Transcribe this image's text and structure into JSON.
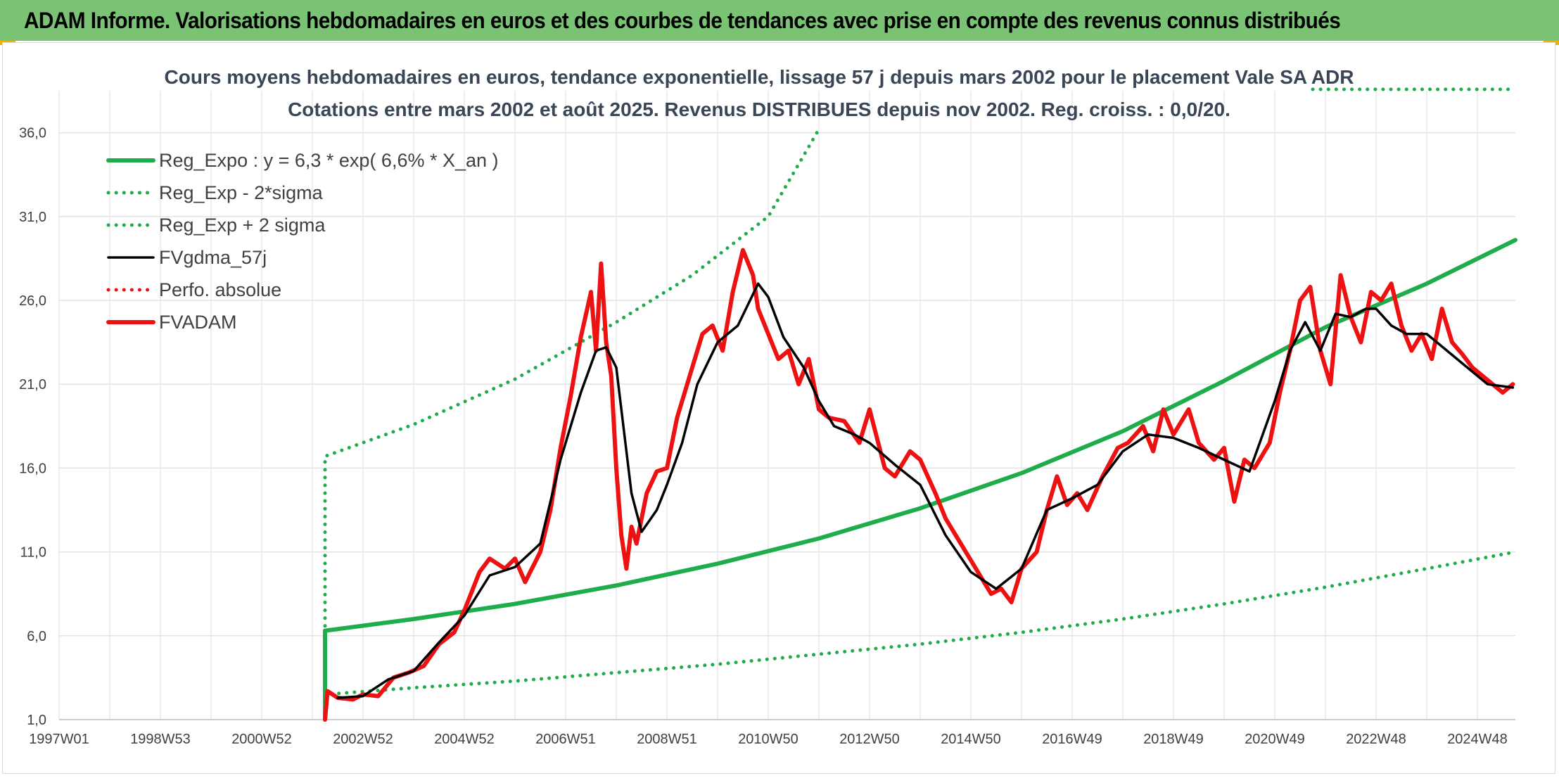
{
  "header": {
    "title": "ADAM Informe. Valorisations hebdomadaires en euros et des courbes de tendances avec prise en compte des revenus connus distribués"
  },
  "colors": {
    "header_bg": "#7ac374",
    "trend": "#1fad4b",
    "band": "#1fad4b",
    "smooth": "#000000",
    "price": "#ee1111",
    "perf": "#ee1111",
    "grid": "#e3e3e3",
    "title": "#3a4556"
  },
  "chart_data": {
    "type": "line",
    "title": "Cours moyens hebdomadaires en euros, tendance exponentielle, lissage 57 j depuis mars 2002 pour le placement Vale SA ADR",
    "subtitle": "Cotations entre mars 2002 et août 2025. Revenus DISTRIBUES depuis nov 2002. Reg. croiss. : 0,0/20.",
    "xlabel": "",
    "ylabel": "",
    "x_range": [
      1997.0,
      2025.75
    ],
    "ylim": [
      1,
      38.5
    ],
    "x_ticks": [
      {
        "label": "1997W01",
        "x": 1997.0
      },
      {
        "label": "1998W53",
        "x": 1999.0
      },
      {
        "label": "2000W52",
        "x": 2001.0
      },
      {
        "label": "2002W52",
        "x": 2003.0
      },
      {
        "label": "2004W52",
        "x": 2005.0
      },
      {
        "label": "2006W51",
        "x": 2007.0
      },
      {
        "label": "2008W51",
        "x": 2009.0
      },
      {
        "label": "2010W50",
        "x": 2011.0
      },
      {
        "label": "2012W50",
        "x": 2013.0
      },
      {
        "label": "2014W50",
        "x": 2015.0
      },
      {
        "label": "2016W49",
        "x": 2017.0
      },
      {
        "label": "2018W49",
        "x": 2019.0
      },
      {
        "label": "2020W49",
        "x": 2021.0
      },
      {
        "label": "2022W48",
        "x": 2023.0
      },
      {
        "label": "2024W48",
        "x": 2025.0
      }
    ],
    "y_ticks": [
      {
        "label": "1,0",
        "y": 1
      },
      {
        "label": "6,0",
        "y": 6
      },
      {
        "label": "11,0",
        "y": 11
      },
      {
        "label": "16,0",
        "y": 16
      },
      {
        "label": "21,0",
        "y": 21
      },
      {
        "label": "26,0",
        "y": 26
      },
      {
        "label": "31,0",
        "y": 31
      },
      {
        "label": "36,0",
        "y": 36
      }
    ],
    "grid": true,
    "legend_position": "top-left",
    "series": [
      {
        "name": "Reg_Expo : y = 6,3 * exp( 6,6% *  X_an )",
        "style": "solid-thick",
        "color": "#1fad4b",
        "x": [
          2002.25,
          2002.25,
          2004,
          2006,
          2008,
          2010,
          2012,
          2014,
          2016,
          2018,
          2020,
          2022,
          2024,
          2025.75
        ],
        "y": [
          1.0,
          6.3,
          7.0,
          7.9,
          9.0,
          10.3,
          11.8,
          13.6,
          15.7,
          18.2,
          21.2,
          24.4,
          27.0,
          29.6
        ]
      },
      {
        "name": "Reg_Exp - 2*sigma",
        "style": "dotted",
        "color": "#1fad4b",
        "x": [
          2002.25,
          2002.25,
          2004,
          2006,
          2008,
          2010,
          2012,
          2014,
          2016,
          2018,
          2020,
          2022,
          2024,
          2025.75
        ],
        "y": [
          1.0,
          2.5,
          2.9,
          3.3,
          3.8,
          4.3,
          4.9,
          5.5,
          6.2,
          7.0,
          7.9,
          8.9,
          10.0,
          11.0
        ]
      },
      {
        "name": "Reg_Exp + 2 sigma",
        "style": "dotted",
        "color": "#1fad4b",
        "x": [
          2002.25,
          2002.25,
          2004,
          2006,
          2008,
          2009.5,
          2011,
          2012.0
        ],
        "y": [
          1.0,
          16.7,
          18.6,
          21.3,
          24.7,
          27.5,
          31.0,
          36.2
        ]
      },
      {
        "name": "FVgdma_57j",
        "style": "solid",
        "color": "#000000",
        "x": [
          2002.5,
          2003.0,
          2003.5,
          2004.0,
          2004.5,
          2005.0,
          2005.5,
          2006.0,
          2006.5,
          2006.9,
          2007.3,
          2007.6,
          2007.8,
          2008.0,
          2008.3,
          2008.5,
          2008.8,
          2009.0,
          2009.3,
          2009.6,
          2010.0,
          2010.4,
          2010.8,
          2011.0,
          2011.3,
          2011.7,
          2012.0,
          2012.3,
          2012.7,
          2013.0,
          2013.5,
          2014.0,
          2014.5,
          2015.0,
          2015.5,
          2016.0,
          2016.5,
          2017.0,
          2017.5,
          2018.0,
          2018.5,
          2019.0,
          2019.5,
          2020.0,
          2020.5,
          2021.0,
          2021.3,
          2021.6,
          2021.9,
          2022.2,
          2022.5,
          2022.8,
          2023.0,
          2023.3,
          2023.6,
          2024.0,
          2024.4,
          2024.8,
          2025.2,
          2025.7
        ],
        "y": [
          2.3,
          2.4,
          3.4,
          3.9,
          5.6,
          7.2,
          9.6,
          10.1,
          11.5,
          16.5,
          20.5,
          23.0,
          23.2,
          22.0,
          14.5,
          12.2,
          13.5,
          15.0,
          17.5,
          21.0,
          23.5,
          24.5,
          27.0,
          26.2,
          23.8,
          22.0,
          20.0,
          18.5,
          18.0,
          17.5,
          16.2,
          15.0,
          12.0,
          9.8,
          8.8,
          10.0,
          13.5,
          14.2,
          15.0,
          17.0,
          18.0,
          17.8,
          17.2,
          16.5,
          15.8,
          20.0,
          23.0,
          24.7,
          23.0,
          25.2,
          25.0,
          25.5,
          25.5,
          24.5,
          24.0,
          24.0,
          23.0,
          22.0,
          21.0,
          20.8
        ]
      },
      {
        "name": "Perfo. absolue",
        "style": "dotted",
        "color": "#ee1111",
        "x": [],
        "y": []
      },
      {
        "name": "FVADAM",
        "style": "solid-thick",
        "color": "#ee1111",
        "x": [
          2002.25,
          2002.3,
          2002.5,
          2002.8,
          2003.0,
          2003.3,
          2003.6,
          2003.9,
          2004.2,
          2004.5,
          2004.8,
          2005.0,
          2005.3,
          2005.5,
          2005.8,
          2006.0,
          2006.2,
          2006.5,
          2006.7,
          2006.9,
          2007.1,
          2007.3,
          2007.5,
          2007.6,
          2007.7,
          2007.8,
          2007.9,
          2008.0,
          2008.1,
          2008.2,
          2008.3,
          2008.4,
          2008.5,
          2008.6,
          2008.8,
          2009.0,
          2009.2,
          2009.5,
          2009.7,
          2009.9,
          2010.1,
          2010.3,
          2010.5,
          2010.7,
          2010.8,
          2011.0,
          2011.2,
          2011.4,
          2011.6,
          2011.8,
          2012.0,
          2012.2,
          2012.5,
          2012.8,
          2013.0,
          2013.3,
          2013.5,
          2013.8,
          2014.0,
          2014.3,
          2014.5,
          2014.8,
          2015.0,
          2015.2,
          2015.4,
          2015.6,
          2015.8,
          2016.0,
          2016.3,
          2016.5,
          2016.7,
          2016.9,
          2017.1,
          2017.3,
          2017.6,
          2017.9,
          2018.1,
          2018.4,
          2018.6,
          2018.8,
          2019.0,
          2019.3,
          2019.5,
          2019.8,
          2020.0,
          2020.2,
          2020.4,
          2020.6,
          2020.9,
          2021.1,
          2021.3,
          2021.5,
          2021.7,
          2021.9,
          2022.1,
          2022.3,
          2022.5,
          2022.7,
          2022.9,
          2023.1,
          2023.3,
          2023.5,
          2023.7,
          2023.9,
          2024.1,
          2024.3,
          2024.5,
          2024.7,
          2024.9,
          2025.1,
          2025.3,
          2025.5,
          2025.7
        ],
        "y": [
          1.0,
          2.7,
          2.3,
          2.2,
          2.5,
          2.4,
          3.5,
          3.8,
          4.2,
          5.5,
          6.2,
          7.5,
          9.8,
          10.6,
          10.0,
          10.6,
          9.2,
          11.0,
          13.5,
          17.2,
          20.3,
          23.8,
          26.5,
          23.0,
          28.2,
          23.5,
          21.5,
          16.0,
          12.0,
          10.0,
          12.5,
          11.5,
          13.0,
          14.5,
          15.8,
          16.0,
          19.0,
          22.0,
          24.0,
          24.5,
          23.0,
          26.5,
          29.0,
          27.5,
          25.5,
          24.0,
          22.5,
          23.0,
          21.0,
          22.5,
          19.5,
          19.0,
          18.8,
          17.5,
          19.5,
          16.0,
          15.5,
          17.0,
          16.5,
          14.5,
          13.0,
          11.5,
          10.5,
          9.5,
          8.5,
          8.8,
          8.0,
          10.0,
          11.0,
          13.5,
          15.5,
          13.8,
          14.5,
          13.5,
          15.5,
          17.2,
          17.5,
          18.5,
          17.0,
          19.5,
          18.0,
          19.5,
          17.5,
          16.5,
          17.2,
          14.0,
          16.5,
          16.0,
          17.5,
          20.5,
          23.0,
          26.0,
          26.8,
          23.0,
          21.0,
          27.5,
          25.0,
          23.5,
          26.5,
          26.0,
          27.0,
          24.5,
          23.0,
          24.0,
          22.5,
          25.5,
          23.5,
          22.8,
          22.0,
          21.5,
          21.0,
          20.5,
          21.0
        ]
      }
    ]
  }
}
